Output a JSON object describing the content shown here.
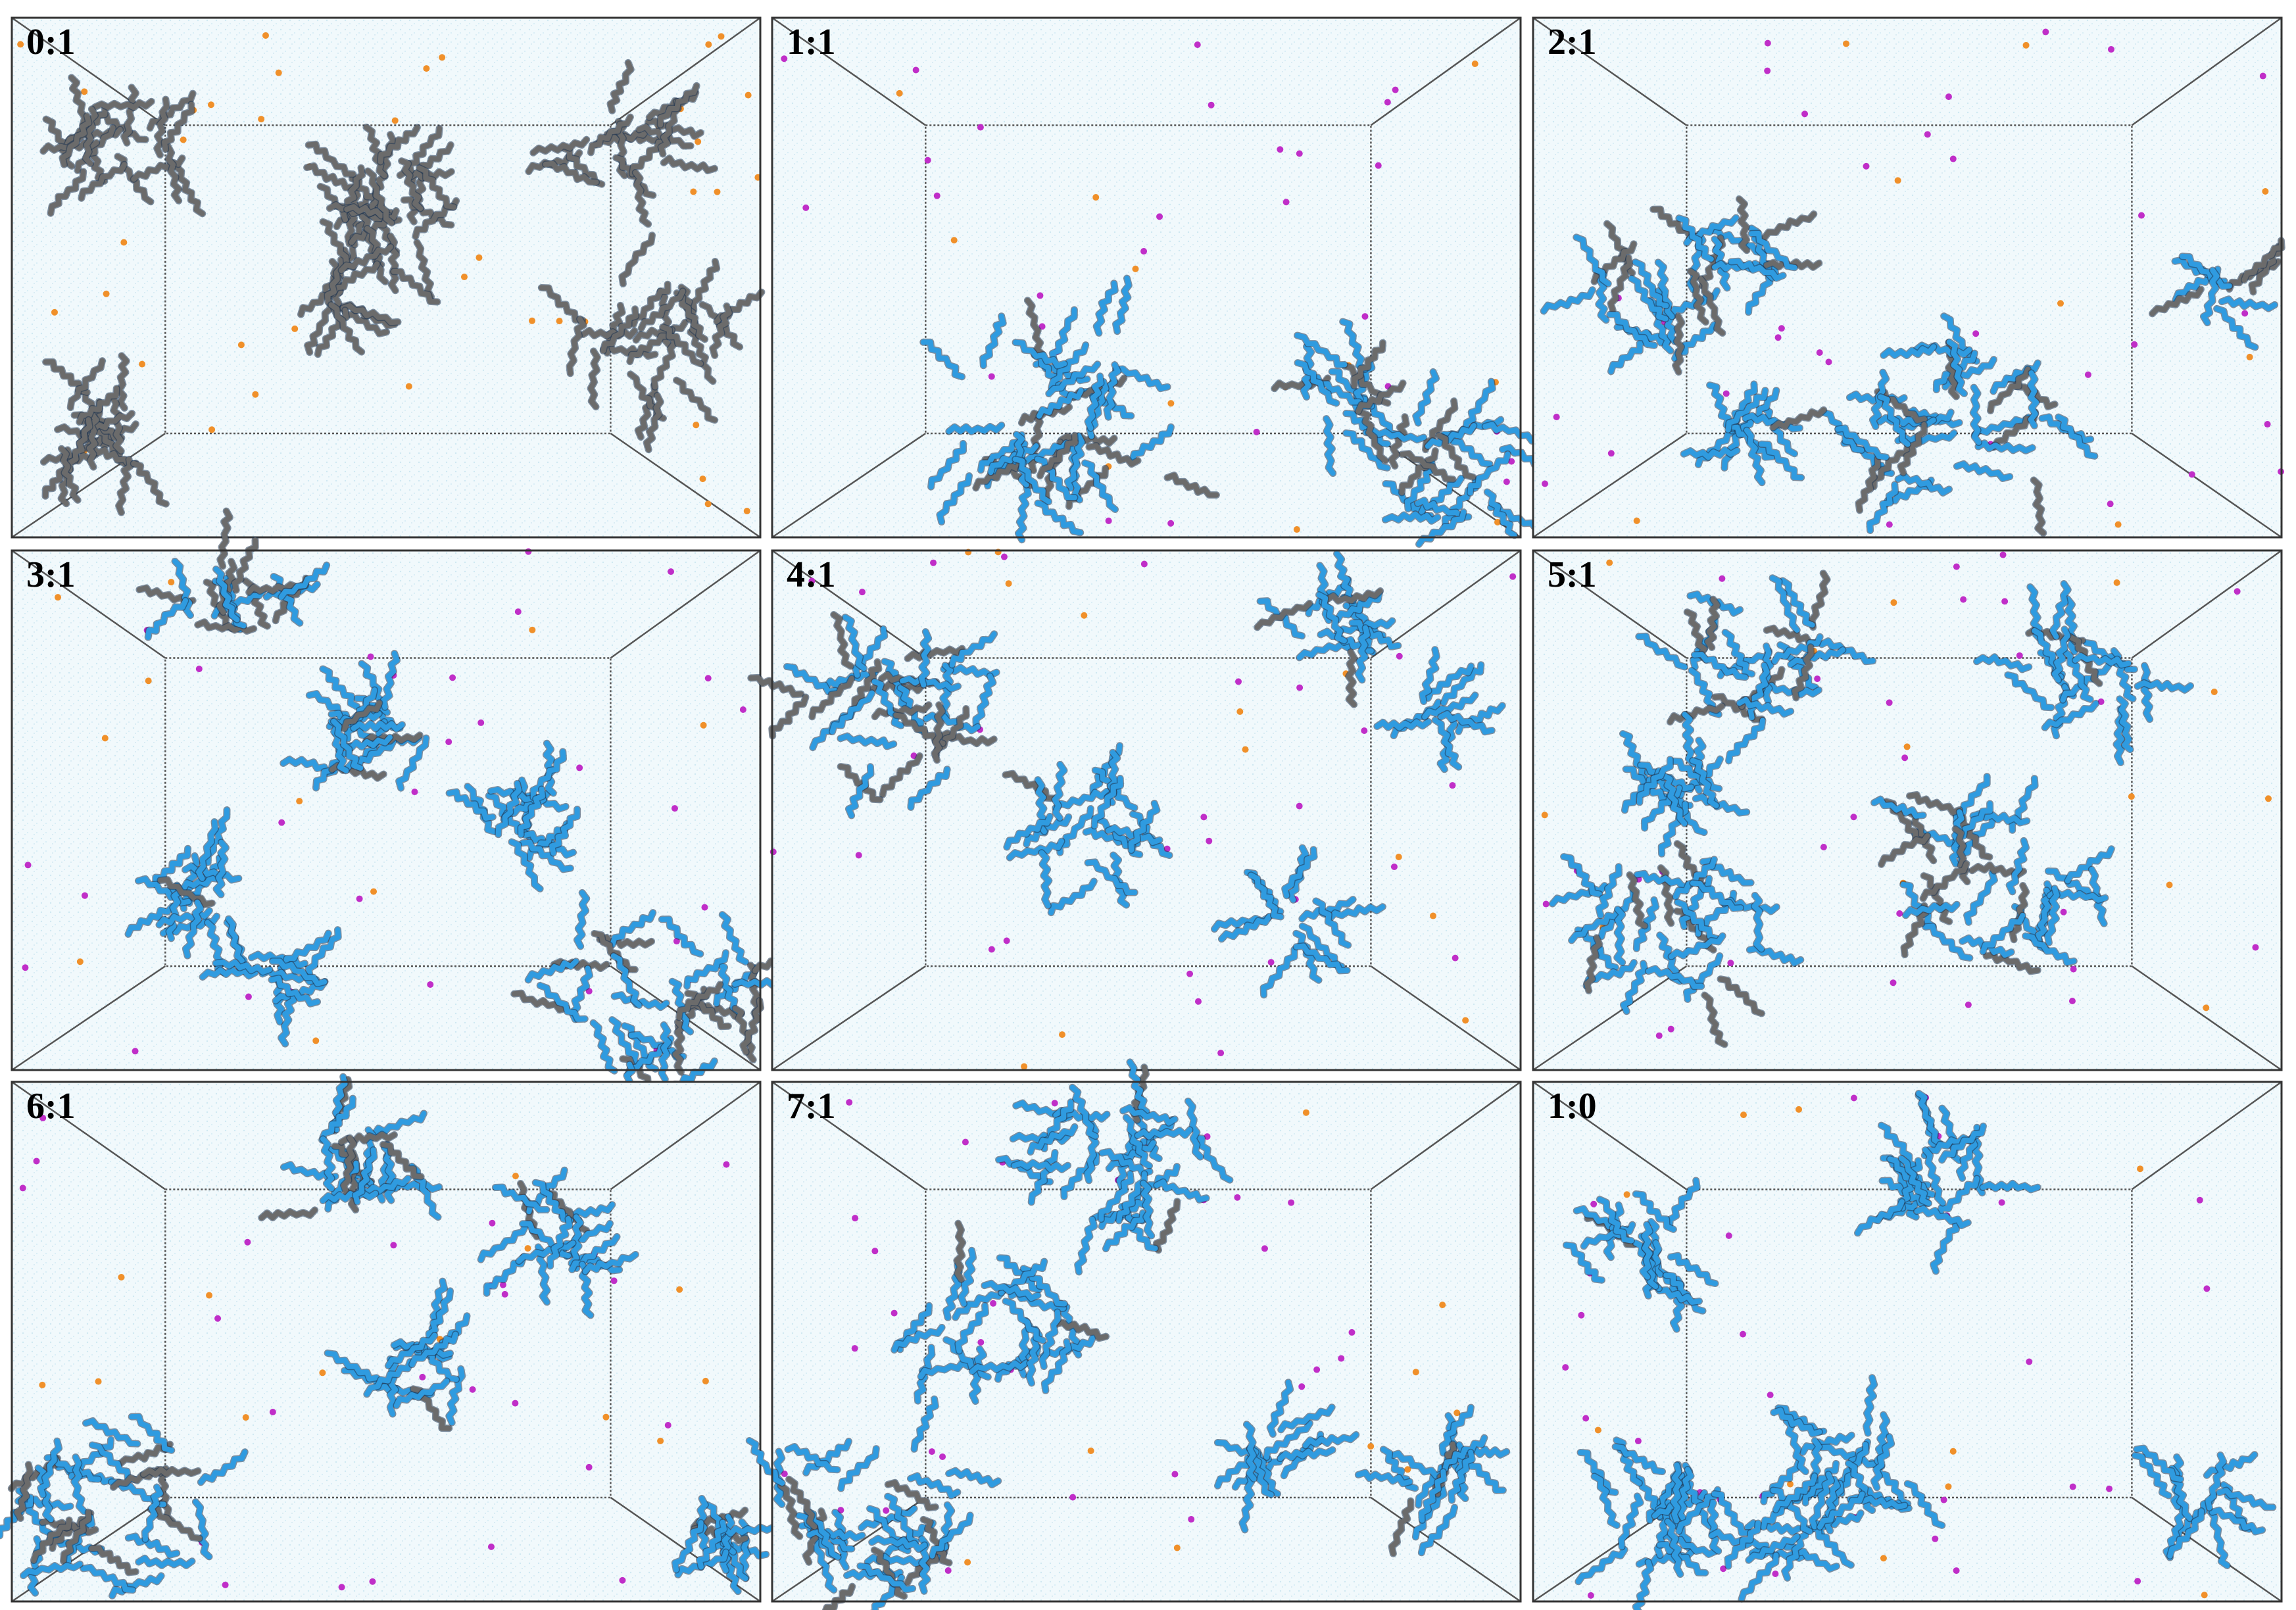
{
  "panels": [
    {
      "label": "0:1"
    },
    {
      "label": "1:1"
    },
    {
      "label": "2:1"
    },
    {
      "label": "3:1"
    },
    {
      "label": "4:1"
    },
    {
      "label": "5:1"
    },
    {
      "label": "6:1"
    },
    {
      "label": "7:1"
    },
    {
      "label": "1:0"
    }
  ]
}
